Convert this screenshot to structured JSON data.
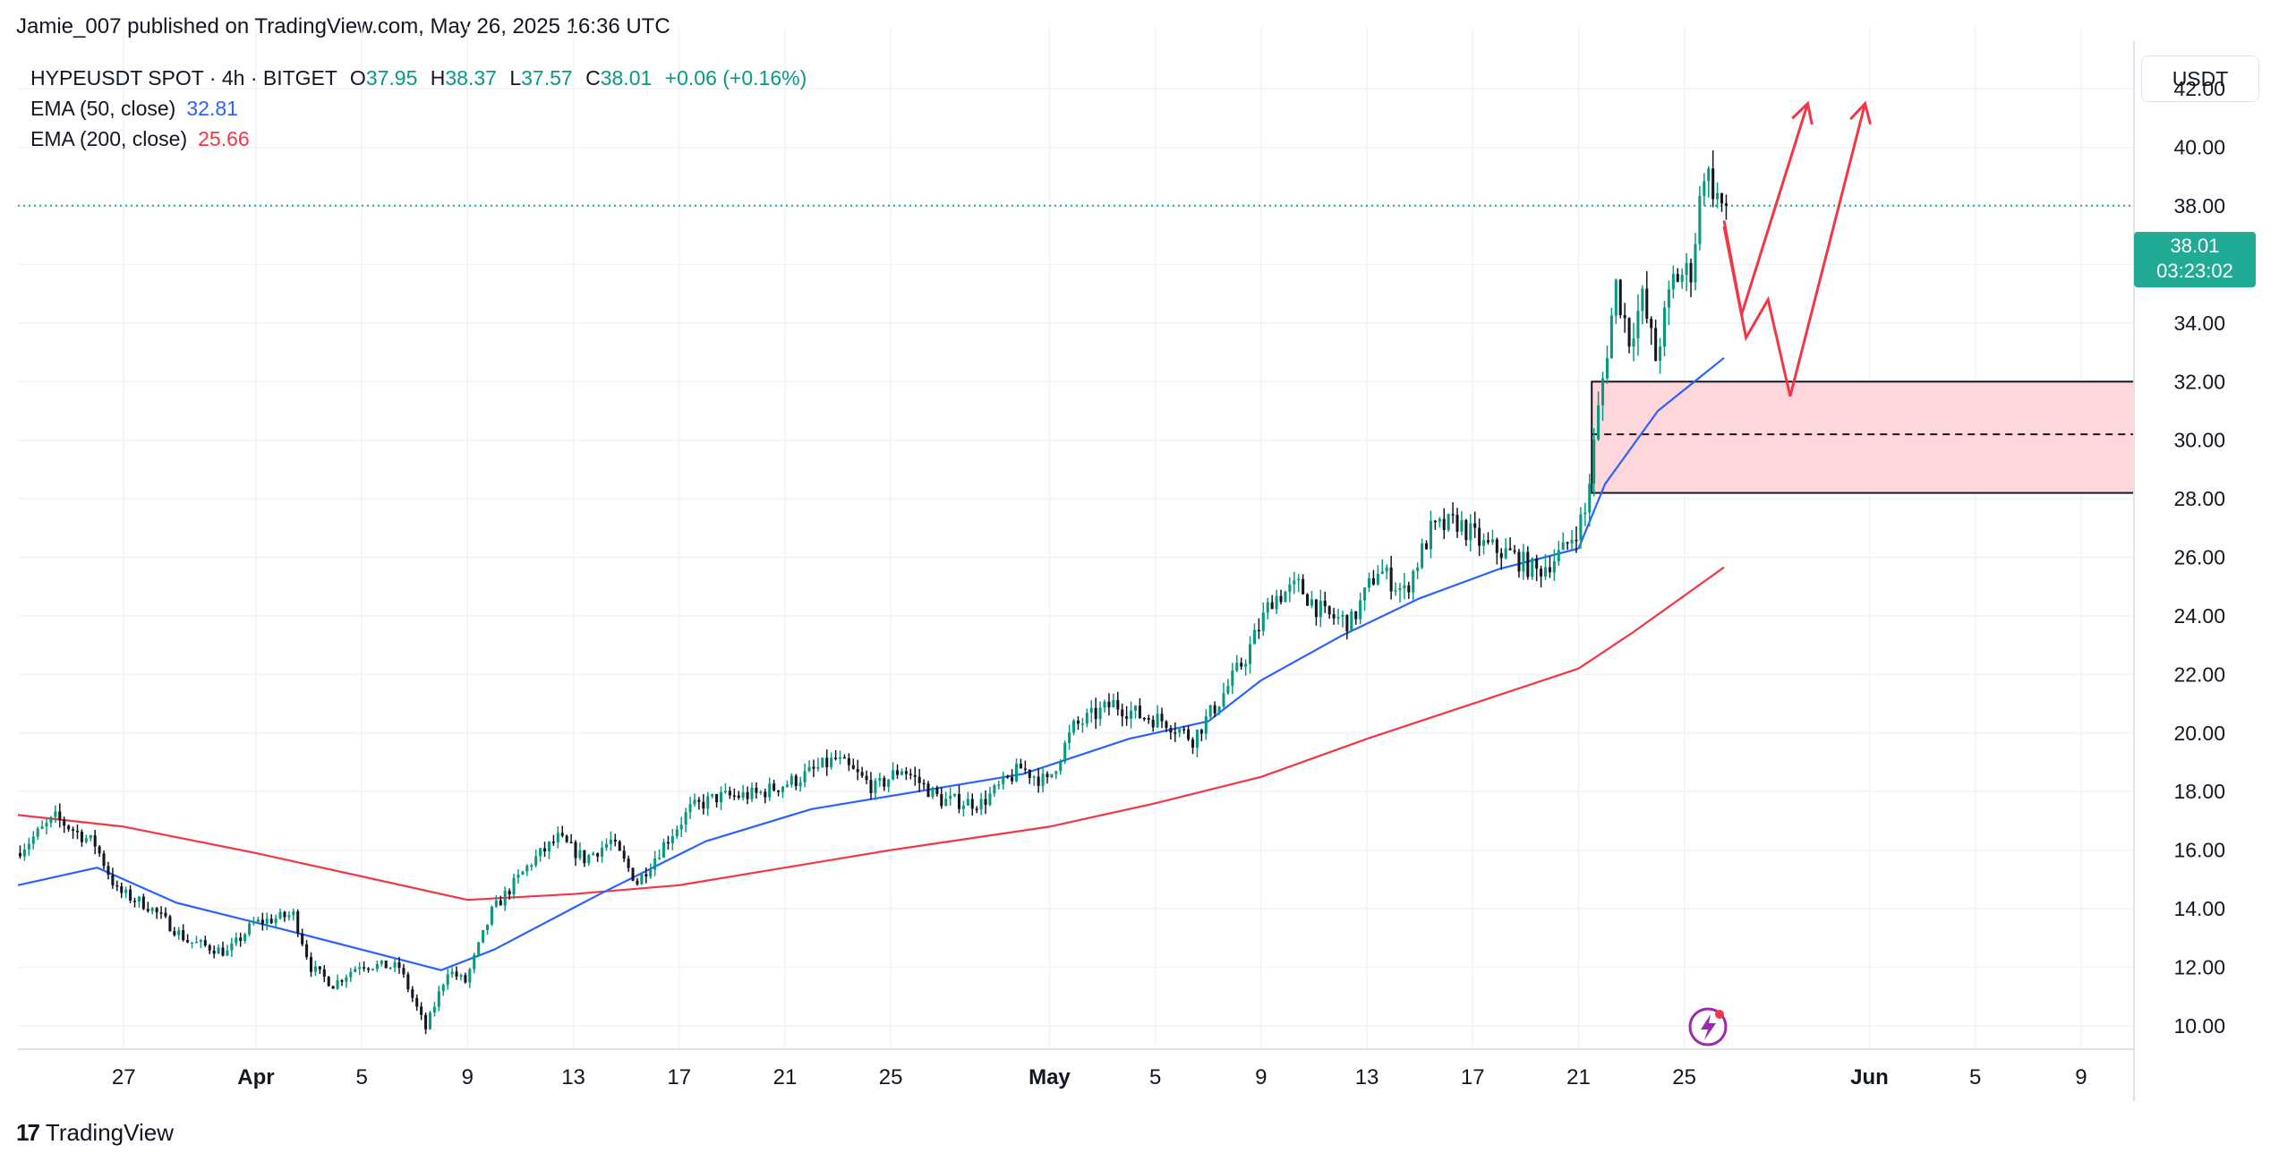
{
  "header": {
    "published_by": "Jamie_007 published on TradingView.com, May 26, 2025 16:36 UTC"
  },
  "legend": {
    "symbol": "HYPEUSDT SPOT · 4h · BITGET",
    "open_label": "O",
    "open": "37.95",
    "high_label": "H",
    "high": "38.37",
    "low_label": "L",
    "low": "37.57",
    "close_label": "C",
    "close": "38.01",
    "change": "+0.06 (+0.16%)",
    "ema50_label": "EMA (50, close)",
    "ema50_value": "32.81",
    "ema200_label": "EMA (200, close)",
    "ema200_value": "25.66"
  },
  "price_axis": {
    "unit": "USDT"
  },
  "price_tag": {
    "price": "38.01",
    "countdown": "03:23:02"
  },
  "footer": {
    "logo_mark": "17",
    "logo_text": "TradingView"
  },
  "colors": {
    "up": "#089981",
    "down": "#131722",
    "ema50": "#2962ff",
    "ema200": "#f23645",
    "zone_fill": "#ffd6da",
    "arrow": "#f23645",
    "grid": "#f0f3fa"
  },
  "chart_data": {
    "type": "candlestick",
    "ylim": [
      9.2,
      43.2
    ],
    "yticks": [
      10,
      12,
      14,
      16,
      18,
      20,
      22,
      24,
      26,
      28,
      30,
      32,
      34,
      36,
      38,
      40,
      42
    ],
    "ytick_labels": [
      "10.00",
      "12.00",
      "14.00",
      "16.00",
      "18.00",
      "20.00",
      "22.00",
      "24.00",
      "26.00",
      "28.00",
      "30.00",
      "32.00",
      "34.00",
      "36.00",
      "38.00",
      "40.00",
      "42.00"
    ],
    "x_start": "2025-03-23",
    "x_end": "2025-06-11",
    "xticks": [
      {
        "date": "2025-03-27",
        "label": "27",
        "bold": false
      },
      {
        "date": "2025-04-01",
        "label": "Apr",
        "bold": true
      },
      {
        "date": "2025-04-05",
        "label": "5",
        "bold": false
      },
      {
        "date": "2025-04-09",
        "label": "9",
        "bold": false
      },
      {
        "date": "2025-04-13",
        "label": "13",
        "bold": false
      },
      {
        "date": "2025-04-17",
        "label": "17",
        "bold": false
      },
      {
        "date": "2025-04-21",
        "label": "21",
        "bold": false
      },
      {
        "date": "2025-04-25",
        "label": "25",
        "bold": false
      },
      {
        "date": "2025-05-01",
        "label": "May",
        "bold": true
      },
      {
        "date": "2025-05-05",
        "label": "5",
        "bold": false
      },
      {
        "date": "2025-05-09",
        "label": "9",
        "bold": false
      },
      {
        "date": "2025-05-13",
        "label": "13",
        "bold": false
      },
      {
        "date": "2025-05-17",
        "label": "17",
        "bold": false
      },
      {
        "date": "2025-05-21",
        "label": "21",
        "bold": false
      },
      {
        "date": "2025-05-25",
        "label": "25",
        "bold": false
      },
      {
        "date": "2025-06-01",
        "label": "Jun",
        "bold": true
      },
      {
        "date": "2025-06-05",
        "label": "5",
        "bold": false
      },
      {
        "date": "2025-06-09",
        "label": "9",
        "bold": false
      }
    ],
    "last_price": 38.01,
    "price_anchors": [
      [
        "2025-03-23 00:00",
        15.9
      ],
      [
        "2025-03-24 12:00",
        17.1
      ],
      [
        "2025-03-26 00:00",
        16.2
      ],
      [
        "2025-03-26 20:00",
        14.6
      ],
      [
        "2025-03-28 00:00",
        14.1
      ],
      [
        "2025-03-29 12:00",
        12.9
      ],
      [
        "2025-03-31 00:00",
        12.5
      ],
      [
        "2025-04-01 00:00",
        13.5
      ],
      [
        "2025-04-02 12:00",
        13.8
      ],
      [
        "2025-04-03 04:00",
        12.0
      ],
      [
        "2025-04-04 00:00",
        11.4
      ],
      [
        "2025-04-05 00:00",
        12.1
      ],
      [
        "2025-04-06 12:00",
        12.0
      ],
      [
        "2025-04-07 12:00",
        9.9
      ],
      [
        "2025-04-08 08:00",
        11.9
      ],
      [
        "2025-04-09 00:00",
        11.5
      ],
      [
        "2025-04-10 00:00",
        13.9
      ],
      [
        "2025-04-11 12:00",
        15.6
      ],
      [
        "2025-04-12 12:00",
        16.4
      ],
      [
        "2025-04-13 12:00",
        15.7
      ],
      [
        "2025-04-14 12:00",
        16.3
      ],
      [
        "2025-04-15 12:00",
        14.9
      ],
      [
        "2025-04-16 12:00",
        16.2
      ],
      [
        "2025-04-17 12:00",
        17.4
      ],
      [
        "2025-04-18 12:00",
        17.8
      ],
      [
        "2025-04-20 00:00",
        17.9
      ],
      [
        "2025-04-21 12:00",
        18.4
      ],
      [
        "2025-04-23 00:00",
        19.1
      ],
      [
        "2025-04-24 12:00",
        18.1
      ],
      [
        "2025-04-25 12:00",
        18.8
      ],
      [
        "2025-04-27 00:00",
        17.7
      ],
      [
        "2025-04-28 12:00",
        17.6
      ],
      [
        "2025-04-30 00:00",
        18.8
      ],
      [
        "2025-05-01 00:00",
        18.3
      ],
      [
        "2025-05-02 00:00",
        20.2
      ],
      [
        "2025-05-03 12:00",
        21.0
      ],
      [
        "2025-05-04 12:00",
        20.6
      ],
      [
        "2025-05-05 12:00",
        20.4
      ],
      [
        "2025-05-06 12:00",
        19.8
      ],
      [
        "2025-05-07 12:00",
        21.1
      ],
      [
        "2025-05-08 12:00",
        22.6
      ],
      [
        "2025-05-09 12:00",
        24.6
      ],
      [
        "2025-05-10 12:00",
        25.0
      ],
      [
        "2025-05-11 12:00",
        24.0
      ],
      [
        "2025-05-12 12:00",
        23.8
      ],
      [
        "2025-05-13 12:00",
        25.6
      ],
      [
        "2025-05-14 12:00",
        24.8
      ],
      [
        "2025-05-15 12:00",
        26.9
      ],
      [
        "2025-05-16 12:00",
        27.2
      ],
      [
        "2025-05-17 12:00",
        26.4
      ],
      [
        "2025-05-18 12:00",
        26.1
      ],
      [
        "2025-05-19 12:00",
        25.5
      ],
      [
        "2025-05-20 12:00",
        26.2
      ],
      [
        "2025-05-21 08:00",
        27.5
      ],
      [
        "2025-05-21 20:00",
        31.0
      ],
      [
        "2025-05-22 12:00",
        35.3
      ],
      [
        "2025-05-23 00:00",
        33.5
      ],
      [
        "2025-05-23 12:00",
        34.8
      ],
      [
        "2025-05-24 00:00",
        32.8
      ],
      [
        "2025-05-24 16:00",
        35.5
      ],
      [
        "2025-05-25 08:00",
        35.8
      ],
      [
        "2025-05-25 20:00",
        39.3
      ],
      [
        "2025-05-26 12:00",
        38.01
      ]
    ],
    "ema50": [
      [
        "2025-03-23",
        14.8
      ],
      [
        "2025-03-26",
        15.4
      ],
      [
        "2025-03-29",
        14.2
      ],
      [
        "2025-04-02",
        13.3
      ],
      [
        "2025-04-05",
        12.6
      ],
      [
        "2025-04-08",
        11.9
      ],
      [
        "2025-04-10",
        12.6
      ],
      [
        "2025-04-14",
        14.5
      ],
      [
        "2025-04-18",
        16.3
      ],
      [
        "2025-04-22",
        17.4
      ],
      [
        "2025-04-26",
        18.0
      ],
      [
        "2025-04-30",
        18.6
      ],
      [
        "2025-05-04",
        19.8
      ],
      [
        "2025-05-07",
        20.4
      ],
      [
        "2025-05-09",
        21.8
      ],
      [
        "2025-05-12",
        23.3
      ],
      [
        "2025-05-15",
        24.6
      ],
      [
        "2025-05-18",
        25.6
      ],
      [
        "2025-05-21",
        26.3
      ],
      [
        "2025-05-22",
        28.5
      ],
      [
        "2025-05-24",
        31.0
      ],
      [
        "2025-05-26 12:00",
        32.81
      ]
    ],
    "ema200": [
      [
        "2025-03-23",
        17.2
      ],
      [
        "2025-03-27",
        16.8
      ],
      [
        "2025-04-01",
        15.9
      ],
      [
        "2025-04-05",
        15.1
      ],
      [
        "2025-04-09",
        14.3
      ],
      [
        "2025-04-13",
        14.5
      ],
      [
        "2025-04-17",
        14.8
      ],
      [
        "2025-04-21",
        15.4
      ],
      [
        "2025-04-25",
        16.0
      ],
      [
        "2025-05-01",
        16.8
      ],
      [
        "2025-05-05",
        17.6
      ],
      [
        "2025-05-09",
        18.5
      ],
      [
        "2025-05-13",
        19.8
      ],
      [
        "2025-05-17",
        21.0
      ],
      [
        "2025-05-21",
        22.2
      ],
      [
        "2025-05-23",
        23.4
      ],
      [
        "2025-05-26 12:00",
        25.66
      ]
    ],
    "zone": {
      "x_start": "2025-05-21 12:00",
      "top": 32.0,
      "bottom": 28.2,
      "mid": 30.2
    },
    "projection_paths": [
      [
        [
          "2025-05-26 12:00",
          37.3
        ],
        [
          "2025-05-27 08:00",
          33.5
        ],
        [
          "2025-05-28 04:00",
          34.8
        ],
        [
          "2025-05-29 00:00",
          31.5
        ],
        [
          "2025-05-31 20:00",
          41.5
        ]
      ],
      [
        [
          "2025-05-26 12:00",
          37.5
        ],
        [
          "2025-05-27 04:00",
          34.3
        ],
        [
          "2025-05-29 16:00",
          41.5
        ]
      ]
    ]
  }
}
